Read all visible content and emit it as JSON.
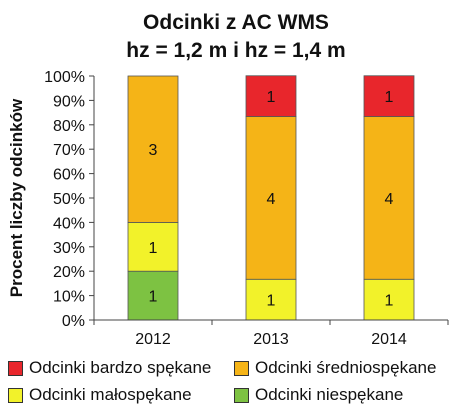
{
  "chart_data": {
    "type": "bar",
    "stacked": true,
    "title": "Odcinki z AC WMS",
    "subtitle": "hz = 1,2 m i hz = 1,4 m",
    "xlabel": "",
    "ylabel": "Procent liczby odcinków",
    "ylim": [
      0,
      100
    ],
    "y_ticks": [
      "0%",
      "10%",
      "20%",
      "30%",
      "40%",
      "50%",
      "60%",
      "70%",
      "80%",
      "90%",
      "100%"
    ],
    "categories": [
      "2012",
      "2013",
      "2014"
    ],
    "series": [
      {
        "name": "Odcinki niespękane",
        "color": "#7dc242",
        "percent": [
          20,
          0,
          0
        ],
        "counts": [
          1,
          0,
          0
        ]
      },
      {
        "name": "Odcinki małospękane",
        "color": "#f2f22a",
        "percent": [
          20,
          16.7,
          16.7
        ],
        "counts": [
          1,
          1,
          1
        ]
      },
      {
        "name": "Odcinki średniospękane",
        "color": "#f5b417",
        "percent": [
          60,
          66.7,
          66.7
        ],
        "counts": [
          3,
          4,
          4
        ]
      },
      {
        "name": "Odcinki bardzo spękane",
        "color": "#e8262c",
        "percent": [
          0,
          16.7,
          16.7
        ],
        "counts": [
          0,
          1,
          1
        ]
      }
    ],
    "legend": {
      "position": "bottom",
      "order": [
        "Odcinki bardzo spękane",
        "Odcinki średniospękane",
        "Odcinki małospękane",
        "Odcinki niespękane"
      ]
    },
    "grid": false
  }
}
